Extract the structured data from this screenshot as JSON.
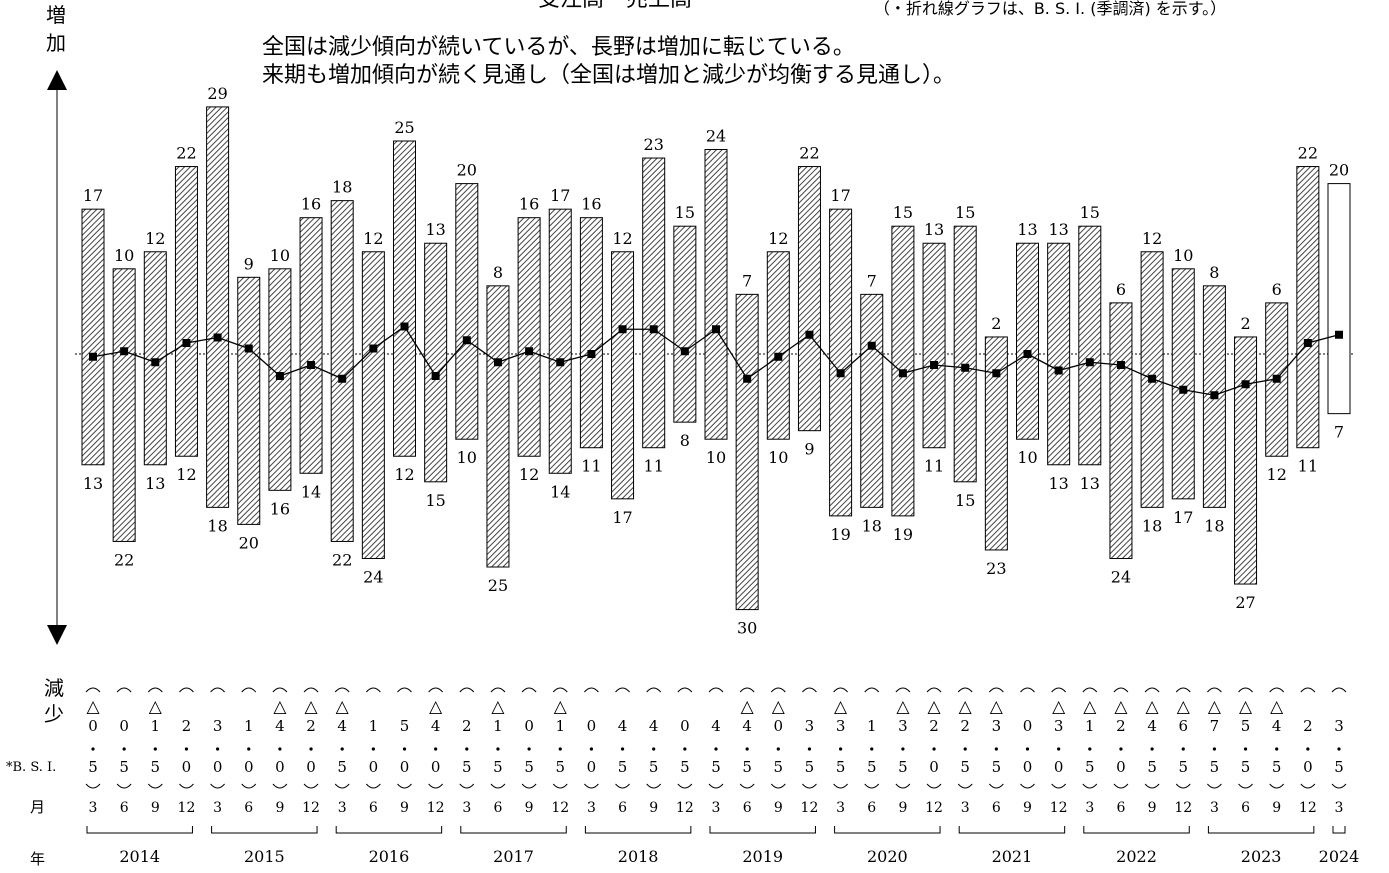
{
  "header": {
    "title_fragment": "受注高・売上高",
    "note_fragment": "（・折れ線グラフは、B. S. I. (季調済) を示す。）",
    "comment_line1": "全国は減少傾向が続いているが、長野は増加に転じている。",
    "comment_line2": "来期も増加傾向が続く見通し（全国は増加と減少が均衡する見通し）。"
  },
  "labels": {
    "increase": "増加",
    "decrease": "減少",
    "bsi_row": "*B. S. I.",
    "month_row": "月",
    "year_row": "年"
  },
  "chart_data": {
    "type": "bar",
    "description_series": [
      "increase",
      "decrease"
    ],
    "periods": [
      {
        "year": 2014,
        "month": 3,
        "inc": 17,
        "dec": 13,
        "bsi": "△0.5"
      },
      {
        "year": 2014,
        "month": 6,
        "inc": 10,
        "dec": 22,
        "bsi": "0.5"
      },
      {
        "year": 2014,
        "month": 9,
        "inc": 12,
        "dec": 13,
        "bsi": "△1.5"
      },
      {
        "year": 2014,
        "month": 12,
        "inc": 22,
        "dec": 12,
        "bsi": "2.0"
      },
      {
        "year": 2015,
        "month": 3,
        "inc": 29,
        "dec": 18,
        "bsi": "3.0"
      },
      {
        "year": 2015,
        "month": 6,
        "inc": 9,
        "dec": 20,
        "bsi": "1.0"
      },
      {
        "year": 2015,
        "month": 9,
        "inc": 10,
        "dec": 16,
        "bsi": "△4.0"
      },
      {
        "year": 2015,
        "month": 12,
        "inc": 16,
        "dec": 14,
        "bsi": "△2.0"
      },
      {
        "year": 2016,
        "month": 3,
        "inc": 18,
        "dec": 22,
        "bsi": "△4.5"
      },
      {
        "year": 2016,
        "month": 6,
        "inc": 12,
        "dec": 24,
        "bsi": "1.0"
      },
      {
        "year": 2016,
        "month": 9,
        "inc": 25,
        "dec": 12,
        "bsi": "5.0"
      },
      {
        "year": 2016,
        "month": 12,
        "inc": 13,
        "dec": 15,
        "bsi": "△4.0"
      },
      {
        "year": 2017,
        "month": 3,
        "inc": 20,
        "dec": 10,
        "bsi": "2.5"
      },
      {
        "year": 2017,
        "month": 6,
        "inc": 8,
        "dec": 25,
        "bsi": "△1.5"
      },
      {
        "year": 2017,
        "month": 9,
        "inc": 16,
        "dec": 12,
        "bsi": "0.5"
      },
      {
        "year": 2017,
        "month": 12,
        "inc": 17,
        "dec": 14,
        "bsi": "△1.5"
      },
      {
        "year": 2018,
        "month": 3,
        "inc": 16,
        "dec": 11,
        "bsi": "0.0"
      },
      {
        "year": 2018,
        "month": 6,
        "inc": 12,
        "dec": 17,
        "bsi": "4.5"
      },
      {
        "year": 2018,
        "month": 9,
        "inc": 23,
        "dec": 11,
        "bsi": "4.5"
      },
      {
        "year": 2018,
        "month": 12,
        "inc": 15,
        "dec": 8,
        "bsi": "0.5"
      },
      {
        "year": 2019,
        "month": 3,
        "inc": 24,
        "dec": 10,
        "bsi": "4.5"
      },
      {
        "year": 2019,
        "month": 6,
        "inc": 7,
        "dec": 30,
        "bsi": "△4.5"
      },
      {
        "year": 2019,
        "month": 9,
        "inc": 12,
        "dec": 10,
        "bsi": "△0.5"
      },
      {
        "year": 2019,
        "month": 12,
        "inc": 22,
        "dec": 9,
        "bsi": "3.5"
      },
      {
        "year": 2020,
        "month": 3,
        "inc": 17,
        "dec": 19,
        "bsi": "△3.5"
      },
      {
        "year": 2020,
        "month": 6,
        "inc": 7,
        "dec": 18,
        "bsi": "1.5"
      },
      {
        "year": 2020,
        "month": 9,
        "inc": 15,
        "dec": 19,
        "bsi": "△3.5"
      },
      {
        "year": 2020,
        "month": 12,
        "inc": 13,
        "dec": 11,
        "bsi": "△2.0"
      },
      {
        "year": 2021,
        "month": 3,
        "inc": 15,
        "dec": 15,
        "bsi": "△2.5"
      },
      {
        "year": 2021,
        "month": 6,
        "inc": 2,
        "dec": 23,
        "bsi": "△3.5"
      },
      {
        "year": 2021,
        "month": 9,
        "inc": 13,
        "dec": 10,
        "bsi": "0.0"
      },
      {
        "year": 2021,
        "month": 12,
        "inc": 13,
        "dec": 13,
        "bsi": "△3.0"
      },
      {
        "year": 2022,
        "month": 3,
        "inc": 15,
        "dec": 13,
        "bsi": "△1.5"
      },
      {
        "year": 2022,
        "month": 6,
        "inc": 6,
        "dec": 24,
        "bsi": "△2.0"
      },
      {
        "year": 2022,
        "month": 9,
        "inc": 12,
        "dec": 18,
        "bsi": "△4.5"
      },
      {
        "year": 2022,
        "month": 12,
        "inc": 10,
        "dec": 17,
        "bsi": "△6.5"
      },
      {
        "year": 2023,
        "month": 3,
        "inc": 8,
        "dec": 18,
        "bsi": "△7.5"
      },
      {
        "year": 2023,
        "month": 6,
        "inc": 2,
        "dec": 27,
        "bsi": "△5.5"
      },
      {
        "year": 2023,
        "month": 9,
        "inc": 6,
        "dec": 12,
        "bsi": "△4.5"
      },
      {
        "year": 2023,
        "month": 12,
        "inc": 22,
        "dec": 11,
        "bsi": "2.0"
      },
      {
        "year": 2024,
        "month": 3,
        "inc": 20,
        "dec": 7,
        "bsi": "3.5",
        "forecast": true
      }
    ],
    "bsi_values": [
      -0.5,
      0.5,
      -1.5,
      2.0,
      3.0,
      1.0,
      -4.0,
      -2.0,
      -4.5,
      1.0,
      5.0,
      -4.0,
      2.5,
      -1.5,
      0.5,
      -1.5,
      0.0,
      4.5,
      4.5,
      0.5,
      4.5,
      -4.5,
      -0.5,
      3.5,
      -3.5,
      1.5,
      -3.5,
      -2.0,
      -2.5,
      -3.5,
      0.0,
      -3.0,
      -1.5,
      -2.0,
      -4.5,
      -6.5,
      -7.5,
      -5.5,
      -4.5,
      2.0,
      3.5
    ],
    "years": [
      "2014",
      "2015",
      "2016",
      "2017",
      "2018",
      "2019",
      "2020",
      "2021",
      "2022",
      "2023",
      "2024"
    ],
    "colors": {
      "bar_hatch": "#555555",
      "forecast_bar": "#ffffff",
      "line": "#000000"
    }
  }
}
